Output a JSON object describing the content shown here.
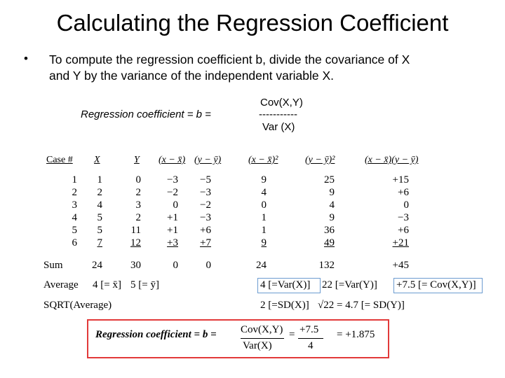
{
  "title": "Calculating the Regression Coefficient",
  "bullet": {
    "dot": "•",
    "line1": "To compute the regression coefficient b, divide the covariance of X",
    "line2": "and Y by the variance of the independent variable X."
  },
  "formula": {
    "numerator": "Cov(X,Y)",
    "lhs": "Regression coefficient  =  b  =",
    "dashes": "-----------",
    "denominator": "Var (X)"
  },
  "table": {
    "headers": [
      "Case #",
      "X",
      "Y",
      "(x − x̄)",
      "(y − ȳ)",
      "(x − x̄)²",
      "(y − ȳ)²",
      "(x − x̄)(y − ȳ)"
    ],
    "rows": [
      [
        "1",
        "1",
        "0",
        "−3",
        "−5",
        "9",
        "25",
        "+15"
      ],
      [
        "2",
        "2",
        "2",
        "−2",
        "−3",
        "4",
        "9",
        "+6"
      ],
      [
        "3",
        "4",
        "3",
        "0",
        "−2",
        "0",
        "4",
        "0"
      ],
      [
        "4",
        "5",
        "2",
        "+1",
        "−3",
        "1",
        "9",
        "−3"
      ],
      [
        "5",
        "5",
        "11",
        "+1",
        "+6",
        "1",
        "36",
        "+6"
      ],
      [
        "6",
        "7",
        "12",
        "+3",
        "+7",
        "9",
        "49",
        "+21"
      ]
    ],
    "sum_label": "Sum",
    "sums": [
      "24",
      "30",
      "0",
      "0",
      "24",
      "132",
      "+45"
    ],
    "average_label": "Average",
    "avg_x": "4 [= x̄]",
    "avg_y": "5 [= ȳ]",
    "avg_var_x": "4 [=Var(X)]",
    "avg_var_y": "22 [=Var(Y)]",
    "avg_cov": "+7.5 [= Cov(X,Y)]",
    "sqrt_label": "SQRT(Average)",
    "sd_x": "2 [=SD(X)]",
    "sd_y": "√22 = 4.7 [= SD(Y)]"
  },
  "result": {
    "lhs": "Regression coefficient  =  b  =",
    "num1": "Cov(X,Y)",
    "den1": "Var(X)",
    "eq": "=",
    "num2": "+7.5",
    "den2": "4",
    "final": "=  +1.875"
  },
  "colors": {
    "highlight_box": "#6b9bd0",
    "result_box": "#e23a3a"
  }
}
